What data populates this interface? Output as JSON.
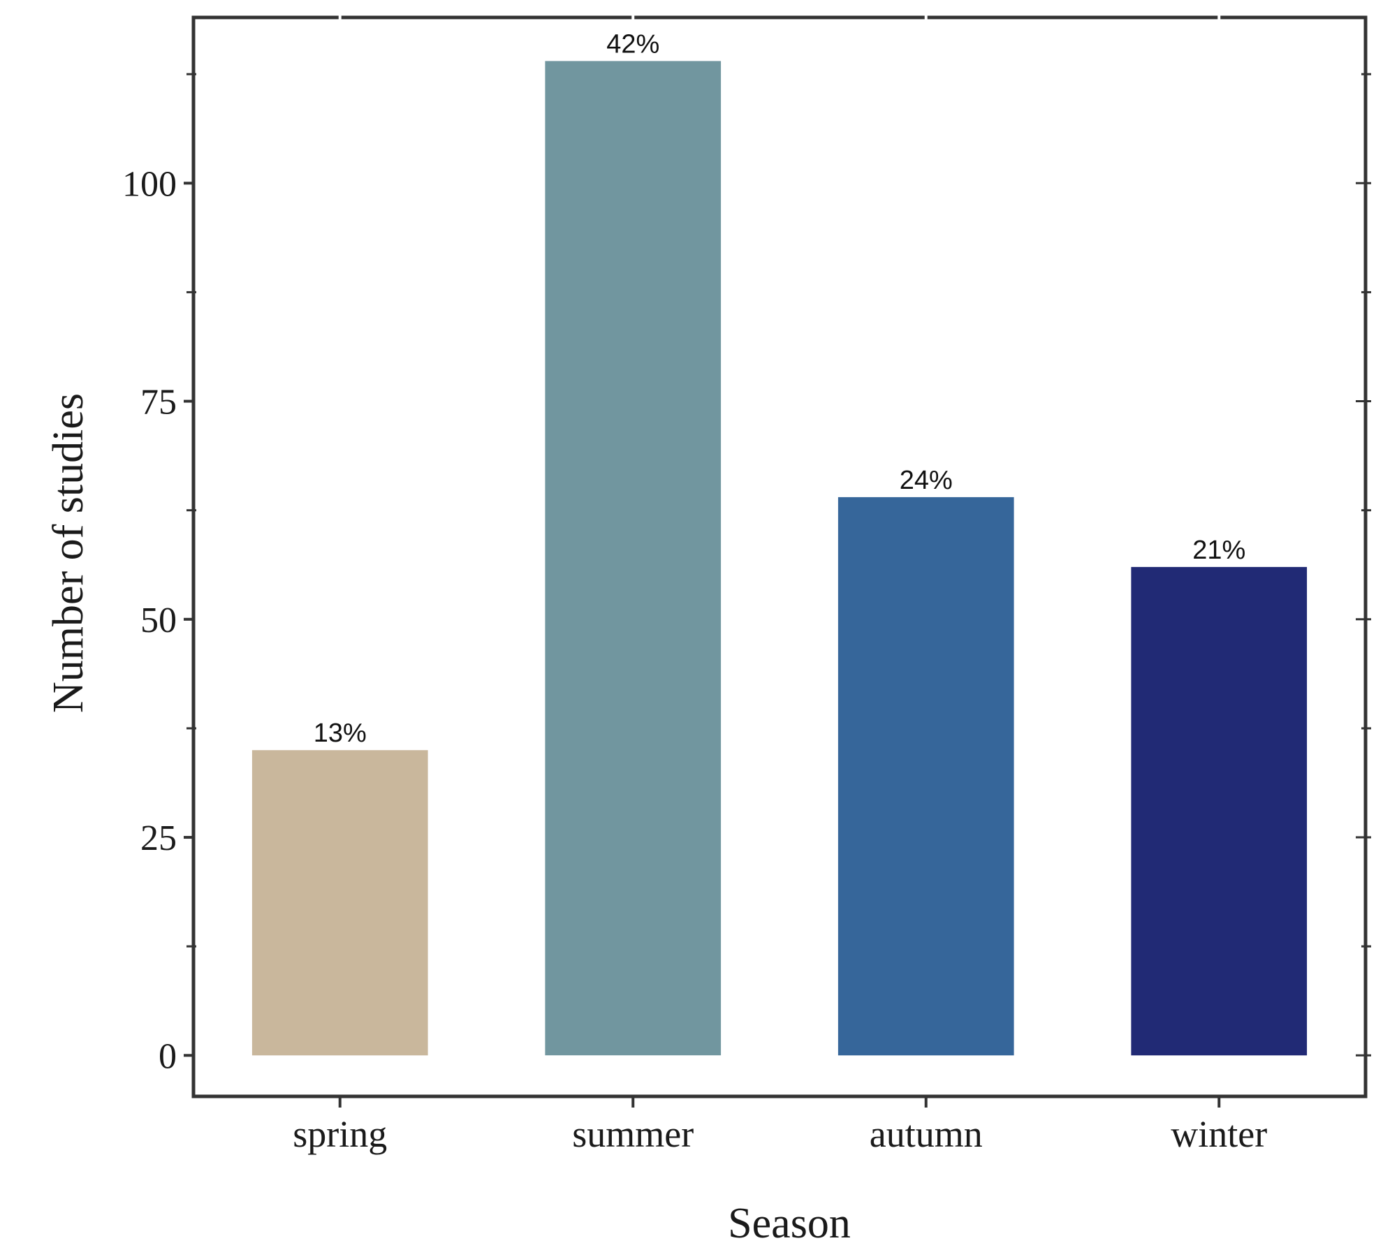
{
  "chart_data": {
    "type": "bar",
    "categories": [
      "spring",
      "summer",
      "autumn",
      "winter"
    ],
    "values": [
      35,
      114,
      64,
      56
    ],
    "data_labels": [
      "13%",
      "42%",
      "24%",
      "21%"
    ],
    "colors": [
      "#C9B79C",
      "#71969F",
      "#36669A",
      "#212A75"
    ],
    "xlabel": "Season",
    "ylabel": "Number of studies",
    "ylim": [
      -4.7,
      119
    ],
    "yticks": [
      0,
      25,
      50,
      75,
      100
    ],
    "yticks_labels": [
      "0",
      "25",
      "50",
      "75",
      "100"
    ],
    "yticks_minor": [
      12.5,
      37.5,
      62.5,
      87.5,
      112.5
    ],
    "grid": false,
    "frame": true,
    "frame_color": "#333333"
  }
}
